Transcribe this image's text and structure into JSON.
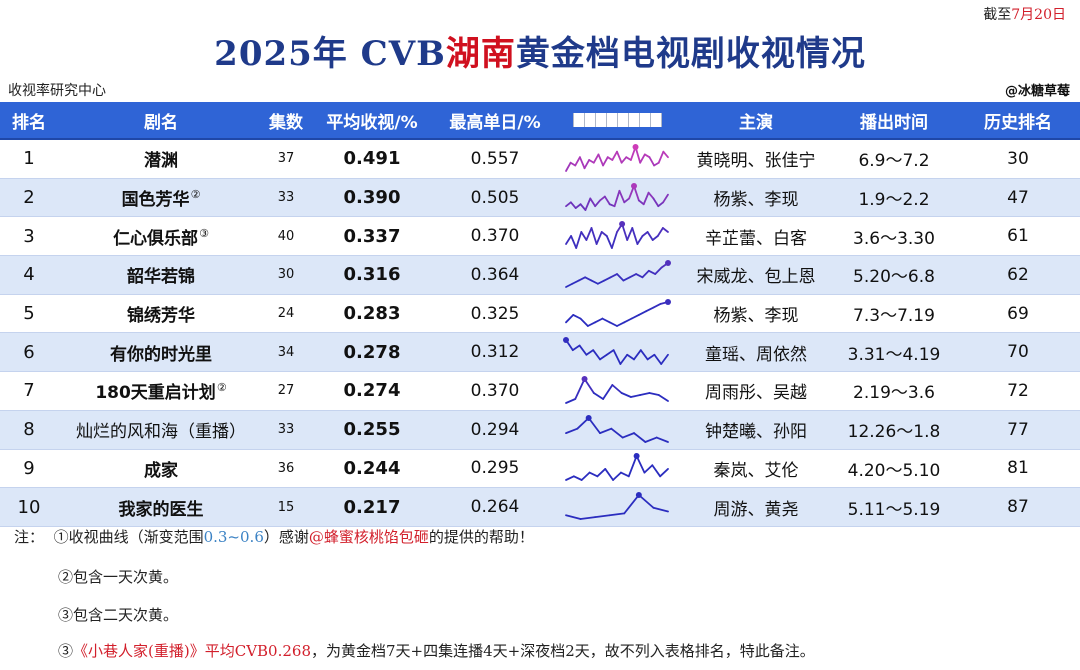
{
  "as_of": {
    "prefix": "截至",
    "date": "7月20日"
  },
  "title": {
    "part1": "2025年 CVB",
    "highlight": "湖南",
    "part2": "黄金档电视剧收视情况"
  },
  "source_left": "收视率研究中心",
  "source_right": "@冰糖草莓",
  "colors": {
    "header_bg": "#2f64d6",
    "row_alt": "#dce7f8",
    "title": "#1f3a8a",
    "highlight": "#d0101f",
    "curve_low": "#2b2dbf",
    "curve_high": "#e83fb7"
  },
  "headers": [
    "排名",
    "剧名",
    "集数",
    "平均收视/%",
    "最高单日/%",
    "",
    "主演",
    "播出时间",
    "历史排名"
  ],
  "chart_data": {
    "type": "table",
    "columns": [
      "排名",
      "剧名",
      "集数",
      "平均收视/%",
      "最高单日/%",
      "主演",
      "播出时间",
      "历史排名"
    ],
    "curve_range": [
      0.3,
      0.6
    ],
    "rows": [
      {
        "rank": "1",
        "name": "潜渊",
        "sup": "",
        "episodes": "37",
        "avg": "0.491",
        "peak": "0.557",
        "cast": "黄晓明、张佳宁",
        "airdate": "6.9～7.2",
        "hist": "30",
        "curve": [
          0.47,
          0.5,
          0.49,
          0.52,
          0.48,
          0.51,
          0.5,
          0.53,
          0.49,
          0.52,
          0.51,
          0.54,
          0.5,
          0.52,
          0.51,
          0.557,
          0.5,
          0.53,
          0.52,
          0.49,
          0.5,
          0.54,
          0.52
        ]
      },
      {
        "rank": "2",
        "name": "国色芳华",
        "sup": "②",
        "episodes": "33",
        "avg": "0.390",
        "peak": "0.505",
        "cast": "杨紫、李现",
        "airdate": "1.9～2.2",
        "hist": "47",
        "curve": [
          0.4,
          0.42,
          0.39,
          0.41,
          0.38,
          0.44,
          0.4,
          0.43,
          0.45,
          0.41,
          0.4,
          0.48,
          0.42,
          0.44,
          0.505,
          0.43,
          0.41,
          0.47,
          0.44,
          0.4,
          0.42,
          0.46
        ]
      },
      {
        "rank": "3",
        "name": "仁心俱乐部",
        "sup": "③",
        "episodes": "40",
        "avg": "0.337",
        "peak": "0.370",
        "cast": "辛芷蕾、白客",
        "airdate": "3.6～3.30",
        "hist": "61",
        "curve": [
          0.32,
          0.34,
          0.31,
          0.35,
          0.33,
          0.36,
          0.32,
          0.35,
          0.34,
          0.31,
          0.35,
          0.37,
          0.33,
          0.36,
          0.32,
          0.34,
          0.35,
          0.33,
          0.34,
          0.36,
          0.35
        ]
      },
      {
        "rank": "4",
        "name": "韶华若锦",
        "sup": "",
        "episodes": "30",
        "avg": "0.316",
        "peak": "0.364",
        "cast": "宋威龙、包上恩",
        "airdate": "5.20～6.8",
        "hist": "62",
        "curve": [
          0.29,
          0.3,
          0.31,
          0.32,
          0.31,
          0.3,
          0.31,
          0.32,
          0.33,
          0.31,
          0.32,
          0.33,
          0.32,
          0.34,
          0.33,
          0.35,
          0.364
        ]
      },
      {
        "rank": "5",
        "name": "锦绣芳华",
        "sup": "",
        "episodes": "24",
        "avg": "0.283",
        "peak": "0.325",
        "cast": "杨紫、李现",
        "airdate": "7.3～7.19",
        "hist": "69",
        "curve": [
          0.27,
          0.29,
          0.28,
          0.26,
          0.27,
          0.28,
          0.27,
          0.26,
          0.27,
          0.28,
          0.29,
          0.3,
          0.31,
          0.32,
          0.325
        ]
      },
      {
        "rank": "6",
        "name": "有你的时光里",
        "sup": "",
        "episodes": "34",
        "avg": "0.278",
        "peak": "0.312",
        "cast": "童瑶、周依然",
        "airdate": "3.31～4.19",
        "hist": "70",
        "curve": [
          0.312,
          0.29,
          0.3,
          0.28,
          0.29,
          0.27,
          0.28,
          0.29,
          0.26,
          0.28,
          0.27,
          0.29,
          0.27,
          0.28,
          0.26,
          0.28
        ]
      },
      {
        "rank": "7",
        "name": "180天重启计划",
        "sup": "②",
        "episodes": "27",
        "avg": "0.274",
        "peak": "0.370",
        "cast": "周雨彤、吴越",
        "airdate": "2.19～3.6",
        "hist": "72",
        "curve": [
          0.25,
          0.27,
          0.37,
          0.3,
          0.27,
          0.34,
          0.3,
          0.28,
          0.29,
          0.3,
          0.29,
          0.26
        ]
      },
      {
        "rank": "8",
        "name": "灿烂的风和海（重播）",
        "sup": "",
        "episodes": "33",
        "avg": "0.255",
        "peak": "0.294",
        "cast": "钟楚曦、孙阳",
        "airdate": "12.26～1.8",
        "hist": "77",
        "curve": [
          0.26,
          0.27,
          0.294,
          0.26,
          0.27,
          0.25,
          0.26,
          0.24,
          0.25,
          0.24
        ]
      },
      {
        "rank": "9",
        "name": "成家",
        "sup": "",
        "episodes": "36",
        "avg": "0.244",
        "peak": "0.295",
        "cast": "秦岚、艾伦",
        "airdate": "4.20～5.10",
        "hist": "81",
        "curve": [
          0.23,
          0.24,
          0.23,
          0.25,
          0.24,
          0.26,
          0.23,
          0.25,
          0.24,
          0.295,
          0.25,
          0.27,
          0.24,
          0.26
        ]
      },
      {
        "rank": "10",
        "name": "我家的医生",
        "sup": "",
        "episodes": "15",
        "avg": "0.217",
        "peak": "0.264",
        "cast": "周游、黄尧",
        "airdate": "5.11～5.19",
        "hist": "87",
        "curve": [
          0.21,
          0.2,
          0.205,
          0.21,
          0.215,
          0.264,
          0.23,
          0.22
        ]
      }
    ]
  },
  "notes": {
    "label": "注：",
    "n1_a": "①收视曲线（渐变范围",
    "n1_range": "0.3~0.6",
    "n1_b": "）感谢",
    "n1_user": "@蜂蜜核桃馅包砸",
    "n1_c": "的提供的帮助！",
    "n2": "②包含一天次黄。",
    "n3": "③包含二天次黄。",
    "n4_a": "③",
    "n4_red": "《小巷人家(重播)》平均CVB0.268",
    "n4_b": "，为黄金档7天+四集连播4天+深夜档2天，故不列入表格排名，特此备注。"
  }
}
